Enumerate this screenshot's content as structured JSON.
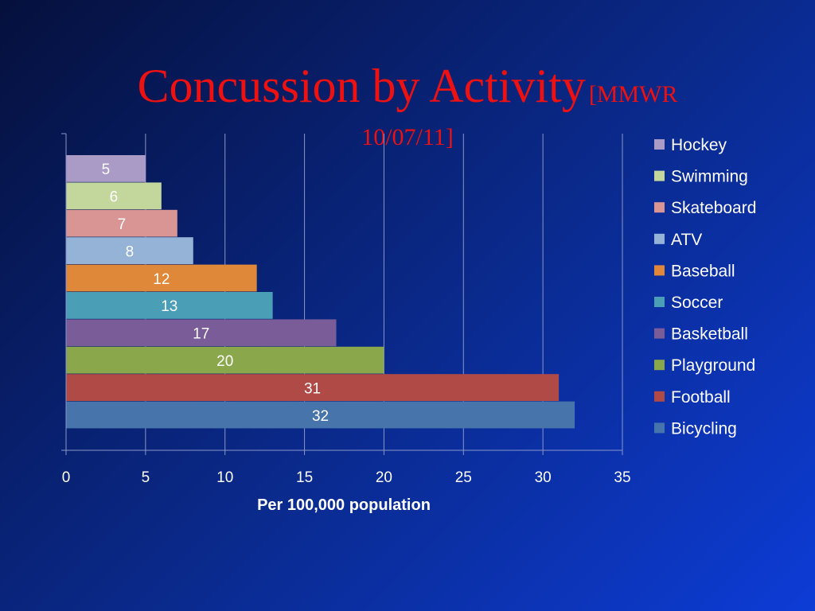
{
  "slide": {
    "title_main": "Concussion by Activity",
    "title_cite_line1": "[MMWR",
    "title_cite_line2": "10/07/11]"
  },
  "chart_data": {
    "type": "bar",
    "orientation": "horizontal",
    "xlabel": "Per 100,000 population",
    "xlim": [
      0,
      35
    ],
    "xticks": [
      0,
      5,
      10,
      15,
      20,
      25,
      30,
      35
    ],
    "grid": true,
    "legend_position": "right",
    "data_labels": true,
    "categories": [
      "Hockey",
      "Swimming",
      "Skateboard",
      "ATV",
      "Baseball",
      "Soccer",
      "Basketball",
      "Playground",
      "Football",
      "Bicycling"
    ],
    "values": [
      5,
      6,
      7,
      8,
      12,
      13,
      17,
      20,
      31,
      32
    ],
    "colors": [
      "#a99bc6",
      "#c3d69b",
      "#d99594",
      "#95b3d7",
      "#e0883a",
      "#4a9eb5",
      "#7a5c99",
      "#8aa74b",
      "#b04a46",
      "#4774aa"
    ]
  }
}
